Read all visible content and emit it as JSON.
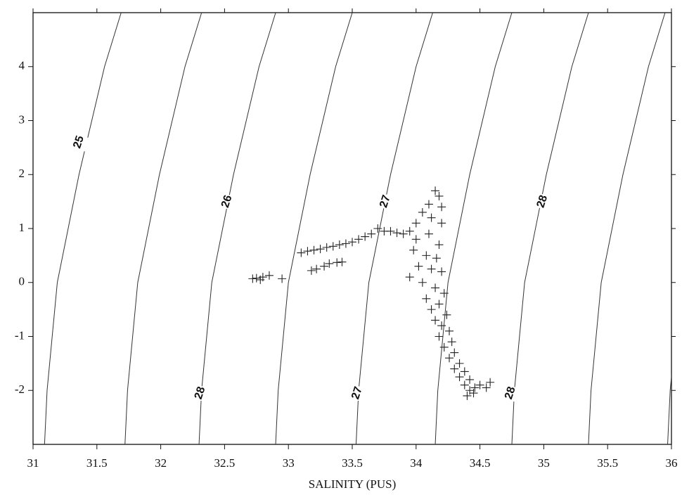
{
  "chart_data": {
    "type": "scatter",
    "x_label": "SALINITY (PUS)",
    "xlim": [
      31,
      36
    ],
    "xticks": [
      31,
      31.5,
      32,
      32.5,
      33,
      33.5,
      34,
      34.5,
      35,
      35.5,
      36
    ],
    "ylim": [
      -3,
      5
    ],
    "yticks": [
      -2,
      -1,
      0,
      1,
      2,
      3,
      4
    ],
    "marker_color": "#222",
    "contour_color": "#333",
    "contours": [
      {
        "x": [
          31.09,
          31.11,
          31.19,
          31.36,
          31.56,
          31.69
        ],
        "y": [
          -3,
          -2,
          0,
          2,
          4,
          5
        ]
      },
      {
        "x": [
          31.72,
          31.74,
          31.82,
          31.99,
          32.19,
          32.32
        ],
        "y": [
          -3,
          -2,
          0,
          2,
          4,
          5
        ]
      },
      {
        "x": [
          32.3,
          32.32,
          32.4,
          32.57,
          32.77,
          32.9
        ],
        "y": [
          -3,
          -2,
          0,
          2,
          4,
          5
        ]
      },
      {
        "x": [
          32.9,
          32.92,
          33.0,
          33.17,
          33.37,
          33.5
        ],
        "y": [
          -3,
          -2,
          0,
          2,
          4,
          5
        ]
      },
      {
        "x": [
          33.53,
          33.55,
          33.63,
          33.8,
          34.0,
          34.13
        ],
        "y": [
          -3,
          -2,
          0,
          2,
          4,
          5
        ]
      },
      {
        "x": [
          34.15,
          34.17,
          34.25,
          34.42,
          34.62,
          34.75
        ],
        "y": [
          -3,
          -2,
          0,
          2,
          4,
          5
        ]
      },
      {
        "x": [
          34.75,
          34.77,
          34.85,
          35.02,
          35.22,
          35.35
        ],
        "y": [
          -3,
          -2,
          0,
          2,
          4,
          5
        ]
      },
      {
        "x": [
          35.35,
          35.37,
          35.45,
          35.62,
          35.82,
          35.95
        ],
        "y": [
          -3,
          -2,
          0,
          2,
          4,
          5
        ]
      },
      {
        "x": [
          35.97,
          35.99,
          36.07
        ],
        "y": [
          -3,
          -2,
          0
        ]
      }
    ],
    "contour_labels": [
      {
        "text": "25",
        "x": 31.36,
        "y": 2.6
      },
      {
        "text": "26",
        "x": 32.52,
        "y": 1.5
      },
      {
        "text": "28",
        "x": 32.31,
        "y": -2.05
      },
      {
        "text": "27",
        "x": 33.76,
        "y": 1.5
      },
      {
        "text": "27",
        "x": 33.54,
        "y": -2.05
      },
      {
        "text": "28",
        "x": 34.99,
        "y": 1.5
      },
      {
        "text": "28",
        "x": 34.74,
        "y": -2.05
      }
    ],
    "x": [
      32.72,
      32.75,
      32.8,
      32.85,
      32.95,
      32.78,
      33.18,
      33.22,
      33.28,
      33.32,
      33.38,
      33.42,
      33.1,
      33.15,
      33.2,
      33.25,
      33.3,
      33.35,
      33.4,
      33.45,
      33.5,
      33.55,
      33.6,
      33.65,
      33.7,
      33.75,
      33.8,
      33.85,
      33.9,
      33.95,
      34.0,
      34.05,
      34.1,
      34.15,
      34.18,
      34.2,
      34.12,
      34.2,
      34.0,
      34.1,
      34.18,
      33.98,
      34.08,
      34.16,
      34.02,
      34.12,
      34.2,
      33.95,
      34.05,
      34.15,
      34.22,
      34.08,
      34.18,
      34.12,
      34.24,
      34.15,
      34.2,
      34.26,
      34.18,
      34.28,
      34.22,
      34.3,
      34.26,
      34.34,
      34.3,
      34.38,
      34.34,
      34.42,
      34.38,
      34.46,
      34.42,
      34.5,
      34.45,
      34.55,
      34.58,
      34.4
    ],
    "values": [
      0.07,
      0.08,
      0.1,
      0.13,
      0.07,
      0.05,
      0.22,
      0.25,
      0.3,
      0.35,
      0.37,
      0.38,
      0.55,
      0.58,
      0.6,
      0.62,
      0.65,
      0.67,
      0.7,
      0.72,
      0.75,
      0.8,
      0.85,
      0.9,
      1.0,
      0.95,
      0.95,
      0.92,
      0.9,
      0.95,
      1.1,
      1.3,
      1.45,
      1.7,
      1.6,
      1.4,
      1.2,
      1.1,
      0.8,
      0.9,
      0.7,
      0.6,
      0.5,
      0.45,
      0.3,
      0.25,
      0.2,
      0.1,
      0.0,
      -0.1,
      -0.2,
      -0.3,
      -0.4,
      -0.5,
      -0.6,
      -0.7,
      -0.8,
      -0.9,
      -1.0,
      -1.1,
      -1.2,
      -1.3,
      -1.4,
      -1.5,
      -1.6,
      -1.65,
      -1.75,
      -1.8,
      -1.9,
      -1.95,
      -2.0,
      -1.9,
      -2.05,
      -1.95,
      -1.85,
      -2.1
    ]
  }
}
